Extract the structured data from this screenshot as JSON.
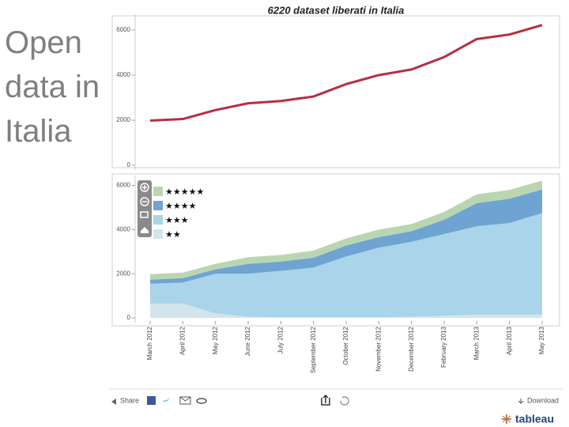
{
  "slide_title": "Open data in Italia",
  "toolbar": {
    "share": "Share",
    "download": "Download",
    "brand": "tableau"
  },
  "chart_data": [
    {
      "type": "line",
      "title": "6220 dataset liberati in Italia",
      "color": "#b5303f",
      "values": [
        1980,
        2050,
        2450,
        2750,
        2850,
        3050,
        3600,
        4000,
        4250,
        4800,
        5600,
        5800,
        6220
      ],
      "ylim": [
        0,
        6700
      ],
      "yticks": [
        0,
        2000,
        4000,
        6000
      ]
    },
    {
      "type": "stacked-area",
      "legend": "upper left",
      "categories": [
        "March 2012",
        "April 2012",
        "May 2012",
        "June 2012",
        "July 2012",
        "September 2012",
        "October 2012",
        "November 2012",
        "December 2012",
        "February 2013",
        "March 2013",
        "April 2013",
        "May 2013"
      ],
      "series": [
        {
          "name": "★★",
          "color": "#d3e5ec",
          "values": [
            650,
            650,
            200,
            50,
            30,
            30,
            30,
            30,
            50,
            100,
            150,
            150,
            150
          ]
        },
        {
          "name": "★★★",
          "color": "#a9d4ea",
          "values": [
            900,
            950,
            1800,
            1950,
            2100,
            2250,
            2750,
            3150,
            3400,
            3700,
            4000,
            4150,
            4600
          ]
        },
        {
          "name": "★★★★",
          "color": "#6fa3d2",
          "values": [
            180,
            200,
            200,
            450,
            420,
            450,
            500,
            480,
            480,
            650,
            1050,
            1100,
            1070
          ]
        },
        {
          "name": "★★★★★",
          "color": "#b9d6b1",
          "values": [
            250,
            250,
            250,
            300,
            300,
            320,
            320,
            340,
            320,
            350,
            400,
            400,
            400
          ]
        }
      ],
      "ylim": [
        0,
        6450
      ],
      "yticks": [
        0,
        2000,
        4000,
        6000
      ]
    }
  ]
}
